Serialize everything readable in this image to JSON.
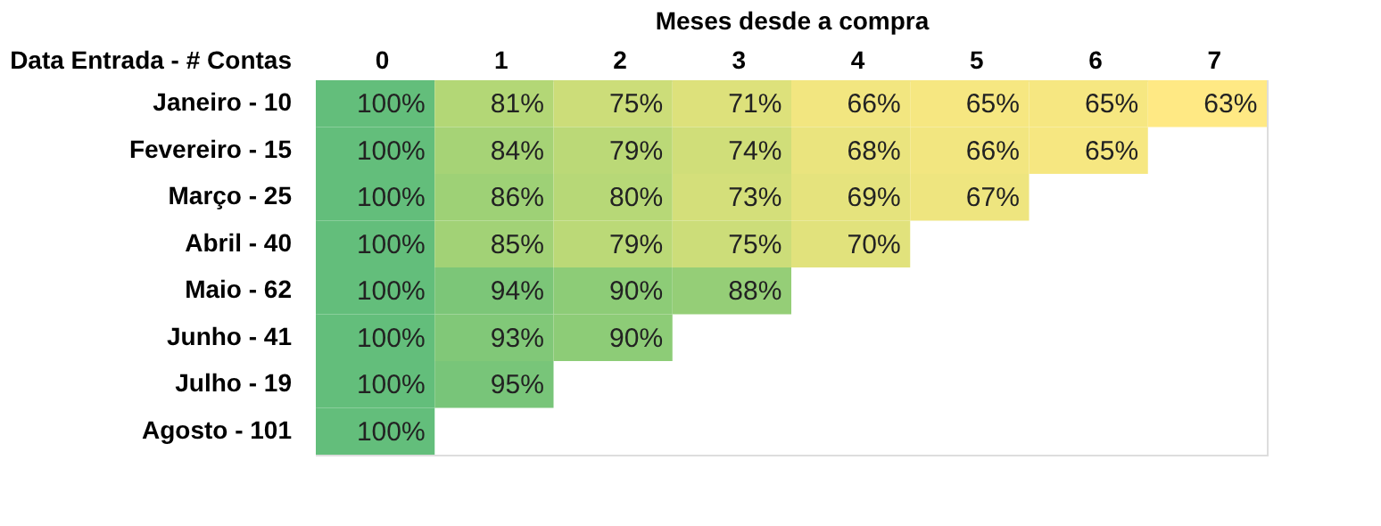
{
  "chart_data": {
    "type": "heatmap",
    "xlabel": "Meses desde a compra",
    "ylabel": "Data Entrada - # Contas",
    "categories": [
      "0",
      "1",
      "2",
      "3",
      "4",
      "5",
      "6",
      "7"
    ],
    "y_categories": [
      "Janeiro - 10",
      "Fevereiro - 15",
      "Março - 25",
      "Abril - 40",
      "Maio - 62",
      "Junho - 41",
      "Julho - 19",
      "Agosto - 101"
    ],
    "cells": [
      [
        100,
        81,
        75,
        71,
        66,
        65,
        65,
        63
      ],
      [
        100,
        84,
        79,
        74,
        68,
        66,
        65,
        null
      ],
      [
        100,
        86,
        80,
        73,
        69,
        67,
        null,
        null
      ],
      [
        100,
        85,
        79,
        75,
        70,
        null,
        null,
        null
      ],
      [
        100,
        94,
        90,
        88,
        null,
        null,
        null,
        null
      ],
      [
        100,
        93,
        90,
        null,
        null,
        null,
        null,
        null
      ],
      [
        100,
        95,
        null,
        null,
        null,
        null,
        null,
        null
      ],
      [
        100,
        null,
        null,
        null,
        null,
        null,
        null,
        null
      ]
    ],
    "cell_labels": [
      [
        "100%",
        "81%",
        "75%",
        "71%",
        "66%",
        "65%",
        "65%",
        "63%"
      ],
      [
        "100%",
        "84%",
        "79%",
        "74%",
        "68%",
        "66%",
        "65%",
        null
      ],
      [
        "100%",
        "86%",
        "80%",
        "73%",
        "69%",
        "67%",
        null,
        null
      ],
      [
        "100%",
        "85%",
        "79%",
        "75%",
        "70%",
        null,
        null,
        null
      ],
      [
        "100%",
        "94%",
        "90%",
        "88%",
        null,
        null,
        null,
        null
      ],
      [
        "100%",
        "93%",
        "90%",
        null,
        null,
        null,
        null,
        null
      ],
      [
        "100%",
        "95%",
        null,
        null,
        null,
        null,
        null,
        null
      ],
      [
        "100%",
        null,
        null,
        null,
        null,
        null,
        null,
        null
      ]
    ],
    "grid": false
  }
}
